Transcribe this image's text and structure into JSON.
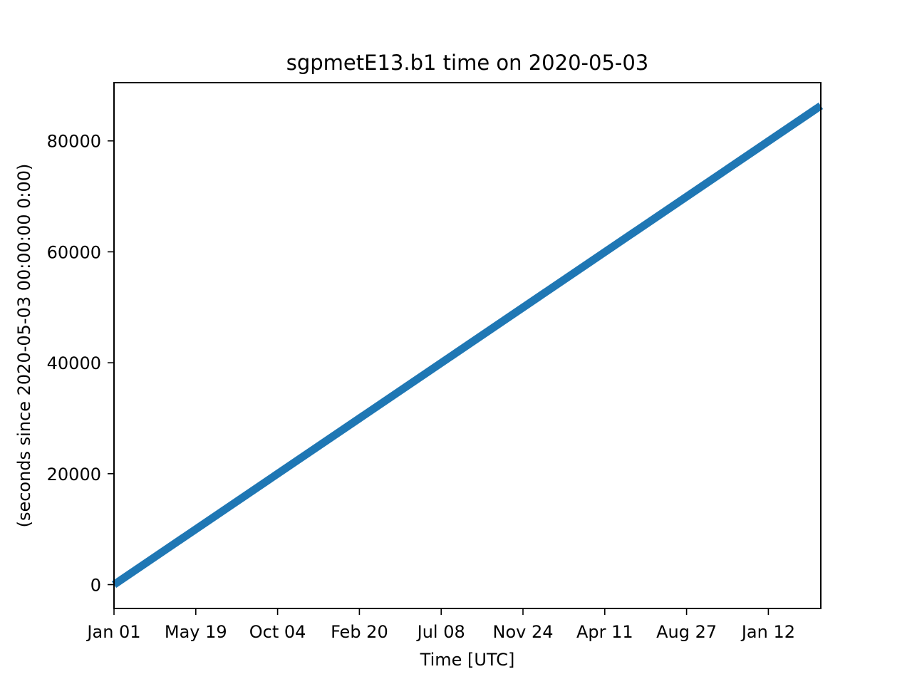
{
  "chart_data": {
    "type": "line",
    "title": "sgpmetE13.b1 time on 2020-05-03",
    "xlabel": "Time [UTC]",
    "ylabel": "(seconds since 2020-05-03 00:00:00 0:00)",
    "x_tick_labels": [
      "Jan 01",
      "May 19",
      "Oct 04",
      "Feb 20",
      "Jul 08",
      "Nov 24",
      "Apr 11",
      "Aug 27",
      "Jan 12"
    ],
    "y_ticks": [
      0,
      20000,
      40000,
      60000,
      80000
    ],
    "ylim": [
      -4300,
      90500
    ],
    "series": [
      {
        "color": "#1f77b4",
        "start": {
          "x": "Jan 01",
          "y": 0
        },
        "end": {
          "y": 86340
        },
        "trend": "linear increasing"
      }
    ],
    "grid": false,
    "legend": "none"
  }
}
